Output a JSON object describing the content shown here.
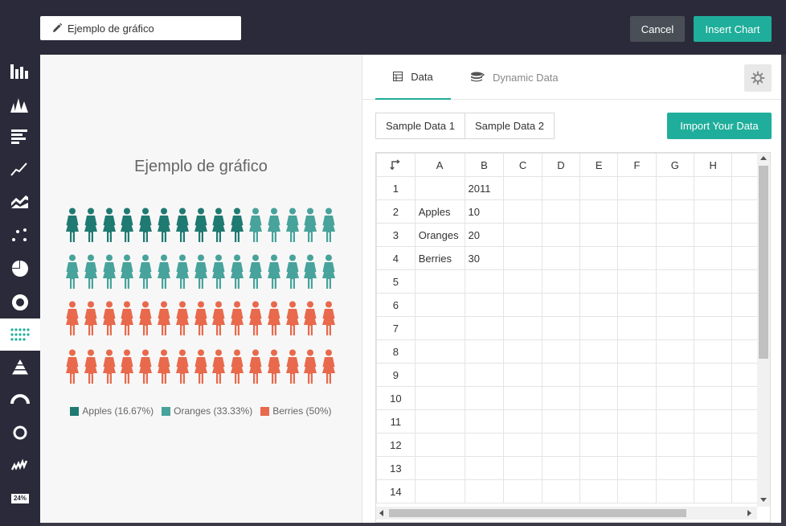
{
  "header": {
    "title_value": "Ejemplo de gráfico",
    "cancel_label": "Cancel",
    "insert_label": "Insert Chart"
  },
  "sidebar": {
    "items": [
      {
        "icon": "bar-chart-icon"
      },
      {
        "icon": "area-peaks-chart-icon"
      },
      {
        "icon": "horizontal-bar-chart-icon"
      },
      {
        "icon": "line-chart-icon"
      },
      {
        "icon": "stacked-area-chart-icon"
      },
      {
        "icon": "scatter-chart-icon"
      },
      {
        "icon": "pie-chart-icon"
      },
      {
        "icon": "donut-chart-icon"
      },
      {
        "icon": "pictorial-chart-icon",
        "active": true
      },
      {
        "icon": "pyramid-chart-icon"
      },
      {
        "icon": "gauge-chart-icon"
      },
      {
        "icon": "radial-chart-icon"
      },
      {
        "icon": "sparkline-chart-icon"
      },
      {
        "icon": "percentage-chart-icon",
        "label": "24%"
      }
    ]
  },
  "preview": {
    "title": "Ejemplo de gráfico"
  },
  "colors": {
    "apples": "#1f7a71",
    "oranges": "#47a39b",
    "berries": "#e8694c",
    "accent": "#1fae9b"
  },
  "chart_data": {
    "type": "pictorial",
    "title": "Ejemplo de gráfico",
    "total_icons": 60,
    "icons_per_row": 15,
    "series": [
      {
        "name": "Apples",
        "value": 10,
        "percent_label": "Apples (16.67%)",
        "icons": 10
      },
      {
        "name": "Oranges",
        "value": 20,
        "percent_label": "Oranges (33.33%)",
        "icons": 20
      },
      {
        "name": "Berries",
        "value": 30,
        "percent_label": "Berries (50%)",
        "icons": 30
      }
    ],
    "legend_position": "bottom"
  },
  "datapanel": {
    "tabs": [
      {
        "label": "Data",
        "icon": "table-icon",
        "active": true
      },
      {
        "label": "Dynamic Data",
        "icon": "database-icon",
        "active": false
      }
    ],
    "sheet_tabs": [
      "Sample Data 1",
      "Sample Data 2"
    ],
    "import_label": "Import Your Data",
    "columns": [
      "A",
      "B",
      "C",
      "D",
      "E",
      "F",
      "G",
      "H"
    ],
    "rows": [
      {
        "num": "1",
        "cells": [
          "",
          "2011",
          "",
          "",
          "",
          "",
          "",
          ""
        ]
      },
      {
        "num": "2",
        "cells": [
          "Apples",
          "10",
          "",
          "",
          "",
          "",
          "",
          ""
        ]
      },
      {
        "num": "3",
        "cells": [
          "Oranges",
          "20",
          "",
          "",
          "",
          "",
          "",
          ""
        ]
      },
      {
        "num": "4",
        "cells": [
          "Berries",
          "30",
          "",
          "",
          "",
          "",
          "",
          ""
        ]
      },
      {
        "num": "5",
        "cells": [
          "",
          "",
          "",
          "",
          "",
          "",
          "",
          ""
        ]
      },
      {
        "num": "6",
        "cells": [
          "",
          "",
          "",
          "",
          "",
          "",
          "",
          ""
        ]
      },
      {
        "num": "7",
        "cells": [
          "",
          "",
          "",
          "",
          "",
          "",
          "",
          ""
        ]
      },
      {
        "num": "8",
        "cells": [
          "",
          "",
          "",
          "",
          "",
          "",
          "",
          ""
        ]
      },
      {
        "num": "9",
        "cells": [
          "",
          "",
          "",
          "",
          "",
          "",
          "",
          ""
        ]
      },
      {
        "num": "10",
        "cells": [
          "",
          "",
          "",
          "",
          "",
          "",
          "",
          ""
        ]
      },
      {
        "num": "11",
        "cells": [
          "",
          "",
          "",
          "",
          "",
          "",
          "",
          ""
        ]
      },
      {
        "num": "12",
        "cells": [
          "",
          "",
          "",
          "",
          "",
          "",
          "",
          ""
        ]
      },
      {
        "num": "13",
        "cells": [
          "",
          "",
          "",
          "",
          "",
          "",
          "",
          ""
        ]
      },
      {
        "num": "14",
        "cells": [
          "",
          "",
          "",
          "",
          "",
          "",
          "",
          ""
        ]
      }
    ]
  }
}
